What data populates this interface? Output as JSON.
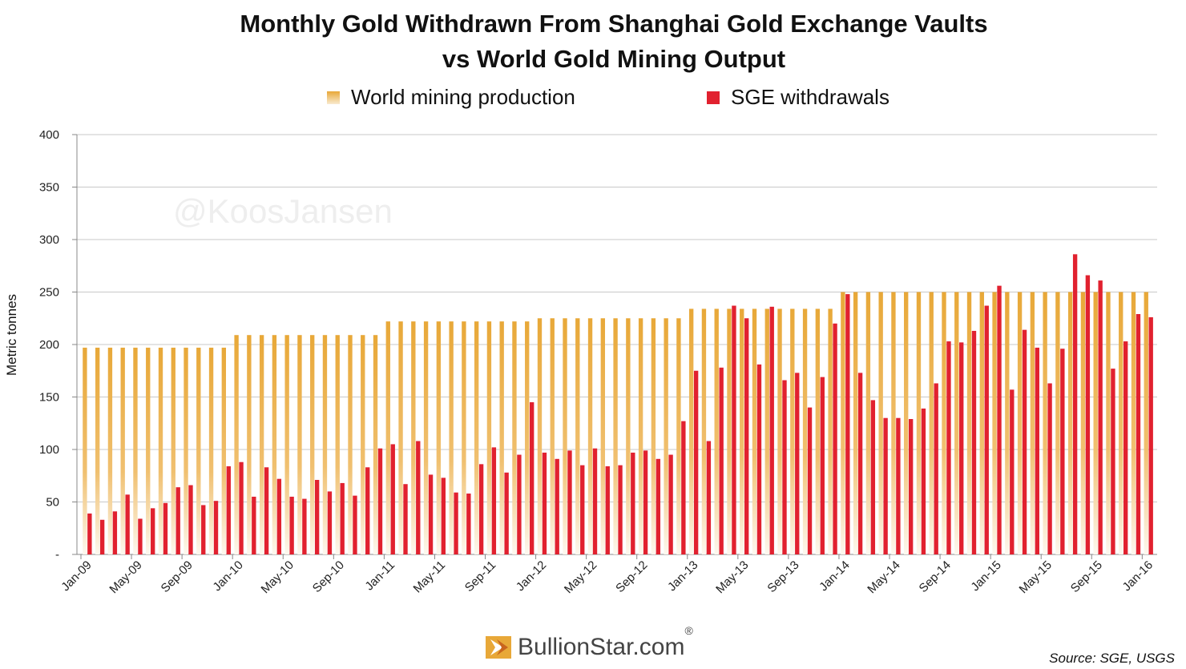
{
  "chart_data": {
    "type": "bar",
    "title": [
      "Monthly Gold Withdrawn From Shanghai Gold Exchange Vaults",
      "vs World Gold Mining Output"
    ],
    "ylabel": "Metric tonnes",
    "xlabel": "",
    "ylim": [
      0,
      400
    ],
    "y_ticks": [
      "-",
      "50",
      "100",
      "150",
      "200",
      "250",
      "300",
      "350",
      "400"
    ],
    "y_tick_values": [
      0,
      50,
      100,
      150,
      200,
      250,
      300,
      350,
      400
    ],
    "grid": true,
    "legend_position": "top",
    "x_tick_labels": [
      "Jan-09",
      "May-09",
      "Sep-09",
      "Jan-10",
      "May-10",
      "Sep-10",
      "Jan-11",
      "May-11",
      "Sep-11",
      "Jan-12",
      "May-12",
      "Sep-12",
      "Jan-13",
      "May-13",
      "Sep-13",
      "Jan-14",
      "May-14",
      "Sep-14",
      "Jan-15",
      "May-15",
      "Sep-15",
      "Jan-16"
    ],
    "categories_start": "2009-01",
    "series": [
      {
        "name": "World mining production",
        "color": "#E8A838",
        "values": [
          197,
          197,
          197,
          197,
          197,
          197,
          197,
          197,
          197,
          197,
          197,
          197,
          209,
          209,
          209,
          209,
          209,
          209,
          209,
          209,
          209,
          209,
          209,
          209,
          222,
          222,
          222,
          222,
          222,
          222,
          222,
          222,
          222,
          222,
          222,
          222,
          225,
          225,
          225,
          225,
          225,
          225,
          225,
          225,
          225,
          225,
          225,
          225,
          234,
          234,
          234,
          234,
          234,
          234,
          234,
          234,
          234,
          234,
          234,
          234,
          250,
          250,
          250,
          250,
          250,
          250,
          250,
          250,
          250,
          250,
          250,
          250,
          250,
          250,
          250,
          250,
          250,
          250,
          250,
          250,
          250,
          250,
          250,
          250,
          250
        ]
      },
      {
        "name": "SGE withdrawals",
        "color": "#E1212F",
        "values": [
          39,
          33,
          41,
          57,
          34,
          44,
          49,
          64,
          66,
          47,
          51,
          84,
          88,
          55,
          83,
          72,
          55,
          53,
          71,
          60,
          68,
          56,
          83,
          101,
          105,
          67,
          108,
          76,
          73,
          59,
          58,
          86,
          102,
          78,
          95,
          145,
          97,
          91,
          99,
          85,
          101,
          84,
          85,
          97,
          99,
          91,
          95,
          127,
          175,
          108,
          178,
          237,
          225,
          181,
          236,
          166,
          173,
          140,
          169,
          220,
          248,
          173,
          147,
          130,
          130,
          129,
          139,
          163,
          203,
          202,
          213,
          237,
          256,
          157,
          214,
          197,
          163,
          196,
          286,
          266,
          261,
          177,
          203,
          229,
          226
        ]
      }
    ]
  },
  "watermark": "@KoosJansen",
  "logo": {
    "text": "BullionStar.com",
    "reg": "®"
  },
  "source": "Source: SGE, USGS"
}
